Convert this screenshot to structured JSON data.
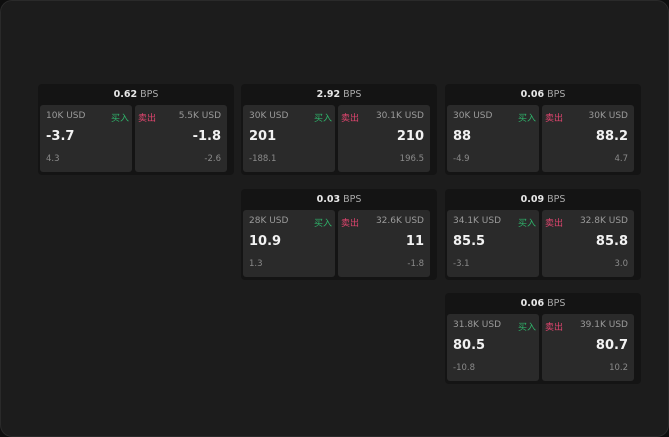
{
  "labels": {
    "unit": "BPS",
    "buy": "买入",
    "sell": "卖出"
  },
  "colors": {
    "buy": "#2fb36a",
    "sell": "#e0456f",
    "background": "#1c1c1c",
    "cell": "#2a2a2a"
  },
  "cards": [
    {
      "spread": "0.62",
      "buy": {
        "size": "10K USD",
        "price": "-3.7",
        "change": "4.3"
      },
      "sell": {
        "size": "5.5K USD",
        "price": "-1.8",
        "change": "-2.6"
      }
    },
    {
      "spread": "2.92",
      "buy": {
        "size": "30K USD",
        "price": "201",
        "change": "-188.1"
      },
      "sell": {
        "size": "30.1K USD",
        "price": "210",
        "change": "196.5"
      }
    },
    {
      "spread": "0.06",
      "buy": {
        "size": "30K USD",
        "price": "88",
        "change": "-4.9"
      },
      "sell": {
        "size": "30K USD",
        "price": "88.2",
        "change": "4.7"
      }
    },
    {
      "spread": "0.03",
      "buy": {
        "size": "28K USD",
        "price": "10.9",
        "change": "1.3"
      },
      "sell": {
        "size": "32.6K USD",
        "price": "11",
        "change": "-1.8"
      }
    },
    {
      "spread": "0.09",
      "buy": {
        "size": "34.1K USD",
        "price": "85.5",
        "change": "-3.1"
      },
      "sell": {
        "size": "32.8K USD",
        "price": "85.8",
        "change": "3.0"
      }
    },
    {
      "spread": "0.06",
      "buy": {
        "size": "31.8K USD",
        "price": "80.5",
        "change": "-10.8"
      },
      "sell": {
        "size": "39.1K USD",
        "price": "80.7",
        "change": "10.2"
      }
    }
  ]
}
